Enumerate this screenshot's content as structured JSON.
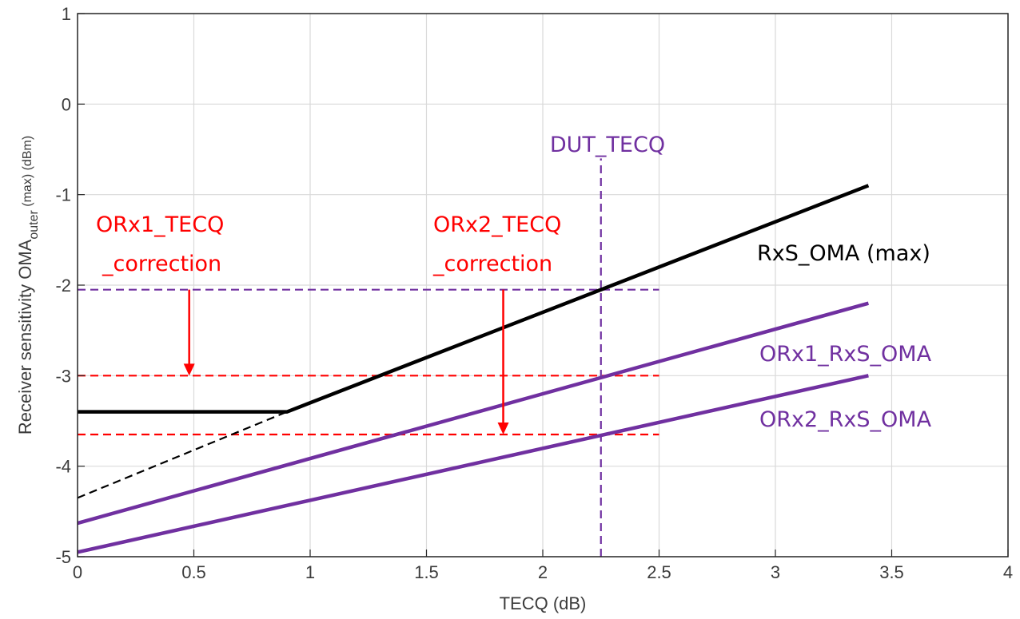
{
  "chart_data": {
    "type": "line",
    "xlabel": "TECQ (dB)",
    "ylabel": {
      "prefix": "Receiver sensitivity OMA",
      "subscript": "outer",
      "suffix": " (max) (dBm)"
    },
    "xlim": [
      0,
      4
    ],
    "ylim": [
      -5,
      1
    ],
    "xticks": [
      0,
      0.5,
      1,
      1.5,
      2,
      2.5,
      3,
      3.5,
      4
    ],
    "xtick_labels": [
      "0",
      "0.5",
      "1",
      "1.5",
      "2",
      "2.5",
      "3",
      "3.5",
      "4"
    ],
    "yticks": [
      1,
      0,
      -1,
      -2,
      -3,
      -4,
      -5
    ],
    "ytick_labels": [
      "1",
      "0",
      "-1",
      "-2",
      "-3",
      "-4",
      "-5"
    ],
    "grid": true,
    "series": [
      {
        "name": "RxS_OMA (max)",
        "color": "#000000",
        "style": "solid",
        "x": [
          0,
          0.9,
          3.4
        ],
        "y": [
          -3.4,
          -3.4,
          -0.9
        ]
      },
      {
        "name": "",
        "color": "#000000",
        "style": "dashed",
        "x": [
          0,
          0.9
        ],
        "y": [
          -4.35,
          -3.4
        ]
      },
      {
        "name": "ORx1_RxS_OMA",
        "color": "#7030a0",
        "style": "solid",
        "x": [
          0,
          3.4
        ],
        "y": [
          -4.63,
          -2.2
        ]
      },
      {
        "name": "ORx2_RxS_OMA",
        "color": "#7030a0",
        "style": "solid",
        "x": [
          0,
          3.4
        ],
        "y": [
          -4.95,
          -3.0
        ]
      }
    ],
    "reference_lines": [
      {
        "orientation": "vertical",
        "x": 2.25,
        "y_range": [
          -5,
          -0.6
        ],
        "color": "#7030a0"
      },
      {
        "orientation": "horizontal",
        "y": -2.05,
        "x_range": [
          0,
          2.5
        ],
        "color": "#7030a0"
      },
      {
        "orientation": "horizontal",
        "y": -3.0,
        "x_range": [
          0,
          2.5
        ],
        "color": "#ff0000"
      },
      {
        "orientation": "horizontal",
        "y": -3.65,
        "x_range": [
          0,
          2.5
        ],
        "color": "#ff0000"
      }
    ],
    "arrows": [
      {
        "x": 0.48,
        "y_from": -2.05,
        "y_to": -3.0,
        "color": "#ff0000"
      },
      {
        "x": 1.83,
        "y_from": -2.05,
        "y_to": -3.65,
        "color": "#ff0000"
      }
    ],
    "annotations": [
      {
        "text": "DUT_TECQ",
        "color": "#7030a0"
      },
      {
        "text": "ORx1_TECQ",
        "color": "#ff0000"
      },
      {
        "text": "_correction",
        "color": "#ff0000"
      },
      {
        "text": "ORx2_TECQ",
        "color": "#ff0000"
      },
      {
        "text": "_correction",
        "color": "#ff0000"
      },
      {
        "text": "RxS_OMA (max)",
        "color": "#000000"
      },
      {
        "text": "ORx1_RxS_OMA",
        "color": "#7030a0"
      },
      {
        "text": "ORx2_RxS_OMA",
        "color": "#7030a0"
      }
    ]
  }
}
